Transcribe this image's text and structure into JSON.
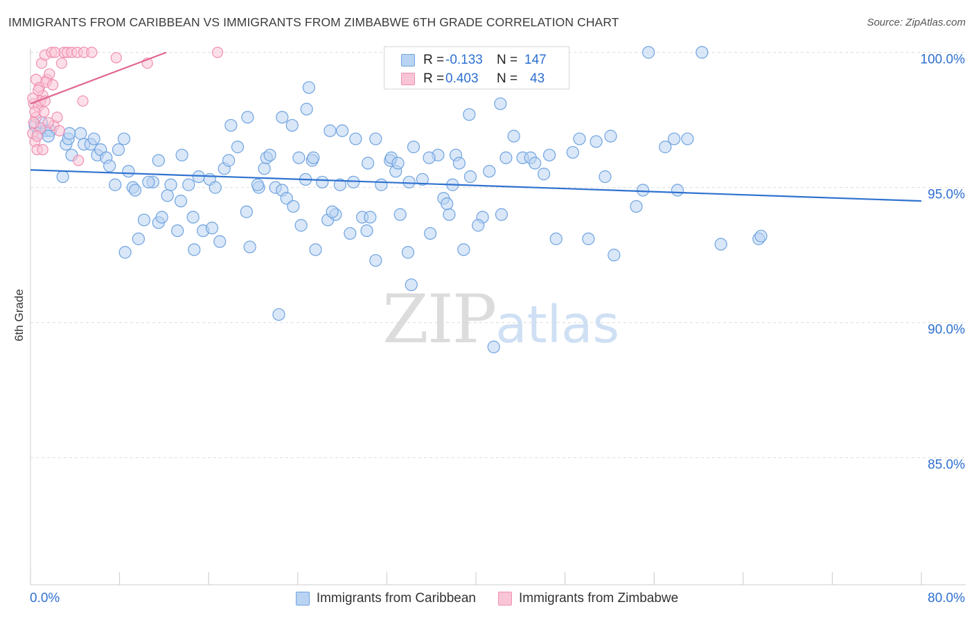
{
  "title": "IMMIGRANTS FROM CARIBBEAN VS IMMIGRANTS FROM ZIMBABWE 6TH GRADE CORRELATION CHART",
  "source": "Source: ZipAtlas.com",
  "watermark": {
    "zip": "ZIP",
    "atlas": "atlas"
  },
  "legend_top": {
    "rows": [
      {
        "r_label": "R =",
        "r_value": "-0.133",
        "n_label": "N =",
        "n_value": "147"
      },
      {
        "r_label": "R =",
        "r_value": "0.403",
        "n_label": "N =",
        "n_value": "43"
      }
    ]
  },
  "legend_bottom": {
    "items": [
      {
        "label": "Immigrants from Caribbean"
      },
      {
        "label": "Immigrants from Zimbabwe"
      }
    ]
  },
  "colors": {
    "blue_fill": "#b9d3f2",
    "blue_stroke": "#6fa3e0",
    "blue_line": "#2f72cf",
    "pink_fill": "#f9c5d6",
    "pink_stroke": "#ef8fb0",
    "pink_line": "#e0668f",
    "grid": "#dcdcdc",
    "axis_text": "#2d6fd0"
  },
  "chart_data": {
    "type": "scatter",
    "title": "IMMIGRANTS FROM CARIBBEAN VS IMMIGRANTS FROM ZIMBABWE 6TH GRADE CORRELATION CHART",
    "xlabel": "",
    "ylabel": "6th Grade",
    "xlim": [
      0,
      80
    ],
    "ylim": [
      80.3,
      100.4
    ],
    "x_tick_labels": [
      "0.0%",
      "80.0%"
    ],
    "y_ticks": [
      85,
      90,
      95,
      100
    ],
    "y_tick_labels": [
      "85.0%",
      "90.0%",
      "95.0%",
      "100.0%"
    ],
    "legend_position": "top-center",
    "series": [
      {
        "name": "Immigrants from Caribbean",
        "r": -0.133,
        "n": 147,
        "trend": [
          [
            0,
            95.65
          ],
          [
            80,
            94.5
          ]
        ],
        "points": [
          [
            0.4,
            97.3
          ],
          [
            0.7,
            97.0
          ],
          [
            1.0,
            97.4
          ],
          [
            1.4,
            97.1
          ],
          [
            1.8,
            97.1
          ],
          [
            1.6,
            96.9
          ],
          [
            3.2,
            96.6
          ],
          [
            3.4,
            96.8
          ],
          [
            3.5,
            97.0
          ],
          [
            2.9,
            95.4
          ],
          [
            3.7,
            96.2
          ],
          [
            4.5,
            97.0
          ],
          [
            4.8,
            96.6
          ],
          [
            5.4,
            96.6
          ],
          [
            5.7,
            96.8
          ],
          [
            6.0,
            96.2
          ],
          [
            6.3,
            96.4
          ],
          [
            6.8,
            96.1
          ],
          [
            7.1,
            95.8
          ],
          [
            7.6,
            95.1
          ],
          [
            7.9,
            96.4
          ],
          [
            8.4,
            96.8
          ],
          [
            8.8,
            95.6
          ],
          [
            9.2,
            95.0
          ],
          [
            9.7,
            93.1
          ],
          [
            10.2,
            93.8
          ],
          [
            11.0,
            95.2
          ],
          [
            11.5,
            93.7
          ],
          [
            11.8,
            93.9
          ],
          [
            12.6,
            95.1
          ],
          [
            13.2,
            93.4
          ],
          [
            13.6,
            96.2
          ],
          [
            14.2,
            95.1
          ],
          [
            14.6,
            93.9
          ],
          [
            15.1,
            95.4
          ],
          [
            15.5,
            93.4
          ],
          [
            16.1,
            95.3
          ],
          [
            16.6,
            95.0
          ],
          [
            17.0,
            93.0
          ],
          [
            17.4,
            95.7
          ],
          [
            17.8,
            96.0
          ],
          [
            18.6,
            96.5
          ],
          [
            19.4,
            94.1
          ],
          [
            19.7,
            92.8
          ],
          [
            20.5,
            95.0
          ],
          [
            21.0,
            95.7
          ],
          [
            21.2,
            96.1
          ],
          [
            22.0,
            95.0
          ],
          [
            22.6,
            94.9
          ],
          [
            23.0,
            94.6
          ],
          [
            23.6,
            94.3
          ],
          [
            24.1,
            96.1
          ],
          [
            24.3,
            93.6
          ],
          [
            25.3,
            96.0
          ],
          [
            25.6,
            92.7
          ],
          [
            26.2,
            95.2
          ],
          [
            26.7,
            93.8
          ],
          [
            27.4,
            94.0
          ],
          [
            27.8,
            95.1
          ],
          [
            28.7,
            93.3
          ],
          [
            29.2,
            96.8
          ],
          [
            29.8,
            93.9
          ],
          [
            30.2,
            93.4
          ],
          [
            31.0,
            96.8
          ],
          [
            30.5,
            93.9
          ],
          [
            31.5,
            95.1
          ],
          [
            32.3,
            96.0
          ],
          [
            32.8,
            95.6
          ],
          [
            33.2,
            94.0
          ],
          [
            34.0,
            95.2
          ],
          [
            34.4,
            96.5
          ],
          [
            35.2,
            95.3
          ],
          [
            35.9,
            93.3
          ],
          [
            36.6,
            96.2
          ],
          [
            37.1,
            94.6
          ],
          [
            37.6,
            94.0
          ],
          [
            37.9,
            95.1
          ],
          [
            38.2,
            96.2
          ],
          [
            38.5,
            95.9
          ],
          [
            38.9,
            92.7
          ],
          [
            39.4,
            97.7
          ],
          [
            40.6,
            93.9
          ],
          [
            40.2,
            93.6
          ],
          [
            41.2,
            95.6
          ],
          [
            42.3,
            94.0
          ],
          [
            42.2,
            98.1
          ],
          [
            42.7,
            96.1
          ],
          [
            43.4,
            96.9
          ],
          [
            44.2,
            96.1
          ],
          [
            44.9,
            96.1
          ],
          [
            45.3,
            95.9
          ],
          [
            46.6,
            96.2
          ],
          [
            47.2,
            93.1
          ],
          [
            48.7,
            96.3
          ],
          [
            49.3,
            96.8
          ],
          [
            50.1,
            93.1
          ],
          [
            50.8,
            96.7
          ],
          [
            51.6,
            95.4
          ],
          [
            52.1,
            96.9
          ],
          [
            52.4,
            92.5
          ],
          [
            54.4,
            94.3
          ],
          [
            55.0,
            94.9
          ],
          [
            55.5,
            100.0
          ],
          [
            57.0,
            96.5
          ],
          [
            57.8,
            96.8
          ],
          [
            58.1,
            94.9
          ],
          [
            59.0,
            96.8
          ],
          [
            62.0,
            92.9
          ],
          [
            65.4,
            93.1
          ],
          [
            65.6,
            93.2
          ],
          [
            60.3,
            100.0
          ],
          [
            25.0,
            98.7
          ],
          [
            24.8,
            97.9
          ],
          [
            23.5,
            97.3
          ],
          [
            22.6,
            97.6
          ],
          [
            19.5,
            97.6
          ],
          [
            28.0,
            97.1
          ],
          [
            37.4,
            94.4
          ],
          [
            32.4,
            96.1
          ],
          [
            33.9,
            92.6
          ],
          [
            31.0,
            92.3
          ],
          [
            34.2,
            91.4
          ],
          [
            22.3,
            90.3
          ],
          [
            41.6,
            89.1
          ],
          [
            26.9,
            97.1
          ],
          [
            25.4,
            96.1
          ],
          [
            24.7,
            95.3
          ],
          [
            27.1,
            94.1
          ],
          [
            20.4,
            95.1
          ],
          [
            18.0,
            97.3
          ],
          [
            11.5,
            96.0
          ],
          [
            10.6,
            95.2
          ],
          [
            12.3,
            94.7
          ],
          [
            13.5,
            94.5
          ],
          [
            9.4,
            94.9
          ],
          [
            8.5,
            92.6
          ],
          [
            14.7,
            92.7
          ],
          [
            16.3,
            93.5
          ],
          [
            21.5,
            96.2
          ],
          [
            30.3,
            95.9
          ],
          [
            35.8,
            96.1
          ],
          [
            29.0,
            95.2
          ],
          [
            39.5,
            95.4
          ],
          [
            46.1,
            95.5
          ],
          [
            33.0,
            95.9
          ]
        ]
      },
      {
        "name": "Immigrants from Zimbabwe",
        "r": 0.403,
        "n": 43,
        "trend": [
          [
            0,
            98.1
          ],
          [
            12.2,
            100.0
          ]
        ],
        "points": [
          [
            0.3,
            98.1
          ],
          [
            0.5,
            97.6
          ],
          [
            0.7,
            98.0
          ],
          [
            0.2,
            97.0
          ],
          [
            0.4,
            96.7
          ],
          [
            0.6,
            96.4
          ],
          [
            0.9,
            97.2
          ],
          [
            0.5,
            99.0
          ],
          [
            0.8,
            98.7
          ],
          [
            1.0,
            99.6
          ],
          [
            1.1,
            98.4
          ],
          [
            1.3,
            99.9
          ],
          [
            1.5,
            99.0
          ],
          [
            1.7,
            99.2
          ],
          [
            1.9,
            100.0
          ],
          [
            1.4,
            98.9
          ],
          [
            1.2,
            97.8
          ],
          [
            0.9,
            98.2
          ],
          [
            0.3,
            97.4
          ],
          [
            0.6,
            96.9
          ],
          [
            2.1,
            97.3
          ],
          [
            2.4,
            97.6
          ],
          [
            2.6,
            97.1
          ],
          [
            2.8,
            99.6
          ],
          [
            3.0,
            100.0
          ],
          [
            3.3,
            100.0
          ],
          [
            3.7,
            100.0
          ],
          [
            4.2,
            100.0
          ],
          [
            4.8,
            100.0
          ],
          [
            1.6,
            97.4
          ],
          [
            1.1,
            96.4
          ],
          [
            0.4,
            97.8
          ],
          [
            0.2,
            98.3
          ],
          [
            2.0,
            98.8
          ],
          [
            0.7,
            98.6
          ],
          [
            1.3,
            98.2
          ],
          [
            4.3,
            96.0
          ],
          [
            4.7,
            98.2
          ],
          [
            5.5,
            100.0
          ],
          [
            7.7,
            99.8
          ],
          [
            10.5,
            99.6
          ],
          [
            16.8,
            100.0
          ],
          [
            2.2,
            100.0
          ]
        ]
      }
    ]
  }
}
